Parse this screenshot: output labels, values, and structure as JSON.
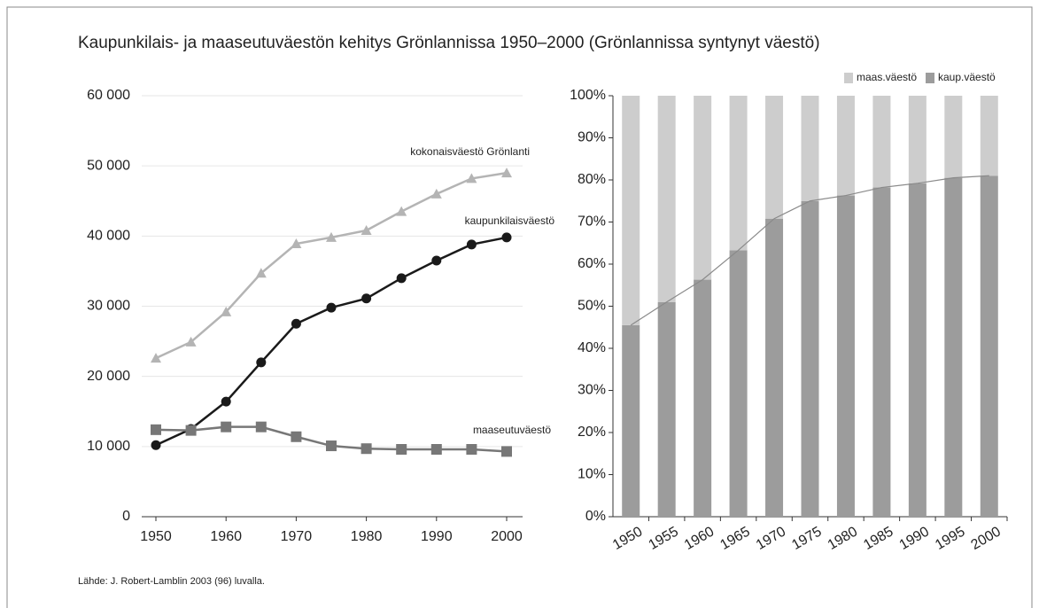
{
  "title": "Kaupunkilais- ja maaseutuväestön kehitys Grönlannissa 1950–2000 (Grönlannissa syntynyt väestö)",
  "source": "Lähde: J. Robert-Lamblin 2003 (96) luvalla.",
  "chart_data": [
    {
      "type": "line",
      "x": [
        1950,
        1955,
        1960,
        1965,
        1970,
        1975,
        1980,
        1985,
        1990,
        1995,
        2000
      ],
      "series": [
        {
          "name": "kokonaisväestö Grönlanti",
          "color": "#b4b4b4",
          "marker": "triangle",
          "values": [
            22600,
            24900,
            29200,
            34700,
            38900,
            39800,
            40800,
            43500,
            46000,
            48200,
            49000
          ]
        },
        {
          "name": "kaupunkilaisväestö",
          "color": "#1a1a1a",
          "marker": "circle",
          "values": [
            10200,
            12500,
            16400,
            22000,
            27500,
            29800,
            31100,
            34000,
            36500,
            38800,
            39800
          ]
        },
        {
          "name": "maaseutuväestö",
          "color": "#777777",
          "marker": "square",
          "values": [
            12400,
            12300,
            12800,
            12800,
            11400,
            10100,
            9700,
            9600,
            9600,
            9600,
            9300
          ]
        }
      ],
      "xlim": [
        1950,
        2000
      ],
      "xticks": [
        1950,
        1960,
        1970,
        1980,
        1990,
        2000
      ],
      "ylim": [
        0,
        60000
      ],
      "yticks": [
        0,
        {
          "value": 10000,
          "label": "10 000"
        },
        {
          "value": 20000,
          "label": "20 000"
        },
        {
          "value": 30000,
          "label": "30 000"
        },
        {
          "value": 40000,
          "label": "40 000"
        },
        {
          "value": 50000,
          "label": "50 000"
        },
        {
          "value": 60000,
          "label": "60 000"
        }
      ],
      "grid": true
    },
    {
      "type": "stacked_bar",
      "categories": [
        "1950",
        "1955",
        "1960",
        "1965",
        "1970",
        "1975",
        "1980",
        "1985",
        "1990",
        "1995",
        "2000"
      ],
      "series": [
        {
          "name": "maas.väestö",
          "color": "#cdcdcd",
          "values": [
            54.5,
            49,
            43.7,
            36.7,
            29.2,
            25,
            23.7,
            21.8,
            20.8,
            19.5,
            19
          ]
        },
        {
          "name": "kaup.väestö",
          "color": "#9c9c9c",
          "values": [
            45.5,
            51,
            56.3,
            63.3,
            70.8,
            75,
            76.3,
            78.2,
            79.2,
            80.5,
            81
          ]
        }
      ],
      "ylim": [
        0,
        100
      ],
      "yticks": [
        {
          "value": 0,
          "label": "0%"
        },
        {
          "value": 10,
          "label": "10%"
        },
        {
          "value": 20,
          "label": "20%"
        },
        {
          "value": 30,
          "label": "30%"
        },
        {
          "value": 40,
          "label": "40%"
        },
        {
          "value": 50,
          "label": "50%"
        },
        {
          "value": 60,
          "label": "60%"
        },
        {
          "value": 70,
          "label": "70%"
        },
        {
          "value": 80,
          "label": "80%"
        },
        {
          "value": 90,
          "label": "90%"
        },
        {
          "value": 100,
          "label": "100%"
        }
      ],
      "legend": "top-right",
      "grid": false
    }
  ]
}
